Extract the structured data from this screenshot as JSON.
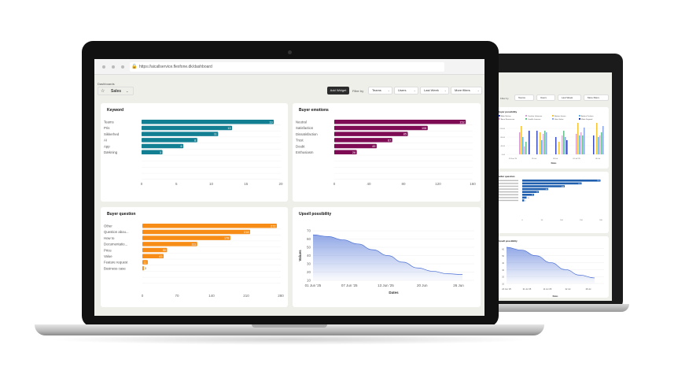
{
  "browser": {
    "url": "https://aicallservice.flexfone.dk/dashboard"
  },
  "header": {
    "dashboards_label": "Dashboards",
    "dashboard_name": "Sales",
    "add_widget_label": "Add Widget",
    "filter_by_label": "Filter by",
    "filters": [
      "Teams",
      "Users",
      "Last Week",
      "More filters"
    ]
  },
  "colors": {
    "keyword": "#137f93",
    "emotions": "#7e0c55",
    "question": "#f78d16",
    "upsell": "#4a6fd6",
    "back_bars": "#1f5fae"
  },
  "chart_data": [
    {
      "id": "keyword",
      "type": "bar",
      "orientation": "horizontal",
      "title": "Keyword",
      "categories": [
        "Teams",
        "Pris",
        "Sikkerhed",
        "AI",
        "App",
        "Dækning"
      ],
      "values": [
        19,
        13,
        11,
        8,
        6,
        3
      ],
      "xlim": [
        0,
        20
      ],
      "xticks": [
        0,
        5,
        10,
        15,
        20
      ],
      "grid": true
    },
    {
      "id": "emotions",
      "type": "bar",
      "orientation": "horizontal",
      "title": "Buyer emotions",
      "categories": [
        "Neutral",
        "Satisfaction",
        "Dissatisfaction",
        "Trust",
        "Doubt",
        "Enthusiasm"
      ],
      "values": [
        152,
        108,
        85,
        67,
        49,
        26
      ],
      "xlim": [
        0,
        160
      ],
      "xticks": [
        0,
        40,
        80,
        120,
        160
      ],
      "grid": true
    },
    {
      "id": "question",
      "type": "bar",
      "orientation": "horizontal",
      "title": "Buyer question",
      "categories": [
        "Other",
        "Question abou...",
        "How to",
        "Documentatio...",
        "Price",
        "Value",
        "Feature request",
        "Business case"
      ],
      "values": [
        272,
        218,
        178,
        111,
        50,
        43,
        11,
        3
      ],
      "xlim": [
        0,
        280
      ],
      "xticks": [
        0,
        70,
        140,
        210,
        280
      ],
      "grid": true
    },
    {
      "id": "upsell",
      "type": "area",
      "title": "Upsell possibility",
      "xlabel": "Dates",
      "ylabel": "Values",
      "x": [
        "01 Jun '25",
        "04 Jun '25",
        "07 Jun '25",
        "10 Jun '25",
        "13 Jun '25",
        "16 Jun '25",
        "20 Jun '25",
        "23 Jun '25",
        "26 Jun '25",
        "29 Jun '25",
        "30 Jun '25"
      ],
      "y": [
        65,
        63,
        59,
        54,
        47,
        40,
        32,
        25,
        21,
        18,
        17
      ],
      "ylim": [
        10,
        70
      ],
      "yticks": [
        10,
        20,
        30,
        40,
        50,
        60,
        70
      ],
      "xticks": [
        "01 Jun '25",
        "07 Jun '25",
        "13 Jun '25",
        "20 Jun",
        "26 Jun"
      ],
      "grid": true
    },
    {
      "id": "back_possibility",
      "type": "bar",
      "title": "Buyer possibility",
      "xlabel": "Dates",
      "legend": [
        "Allan Nielsen",
        "Caroline Johansen",
        "Bettina Jensen",
        "Anders Poulsen",
        "Anne Rasmussen",
        "Camilla Lauesen",
        "Stine Sølvø",
        "Mette Frigaard"
      ],
      "legend_placement": "top",
      "yticks": [
        "0.00",
        "40.00",
        "80.00",
        "120.00"
      ],
      "xticks": [
        "23 Jun '25",
        "25 Jul",
        "28 Jul",
        "01 Jul '25",
        "05 Jul"
      ]
    },
    {
      "id": "back_question",
      "type": "bar",
      "orientation": "horizontal",
      "title": "Seller question",
      "values": [
        199,
        151,
        108,
        66,
        42,
        30,
        11,
        5
      ],
      "xticks": [
        0,
        50,
        100,
        150,
        200
      ]
    },
    {
      "id": "back_upsell",
      "type": "area",
      "title": "Upsell possibility",
      "xlabel": "Dates",
      "y": [
        62,
        58,
        50,
        40,
        30,
        22,
        18
      ],
      "yticks": [
        10,
        20,
        30,
        40,
        50,
        60
      ],
      "xticks": [
        "23 Jun '25",
        "01 Jul '25",
        "11 Jul '25",
        "22 Jul",
        "28 Jul"
      ]
    }
  ]
}
